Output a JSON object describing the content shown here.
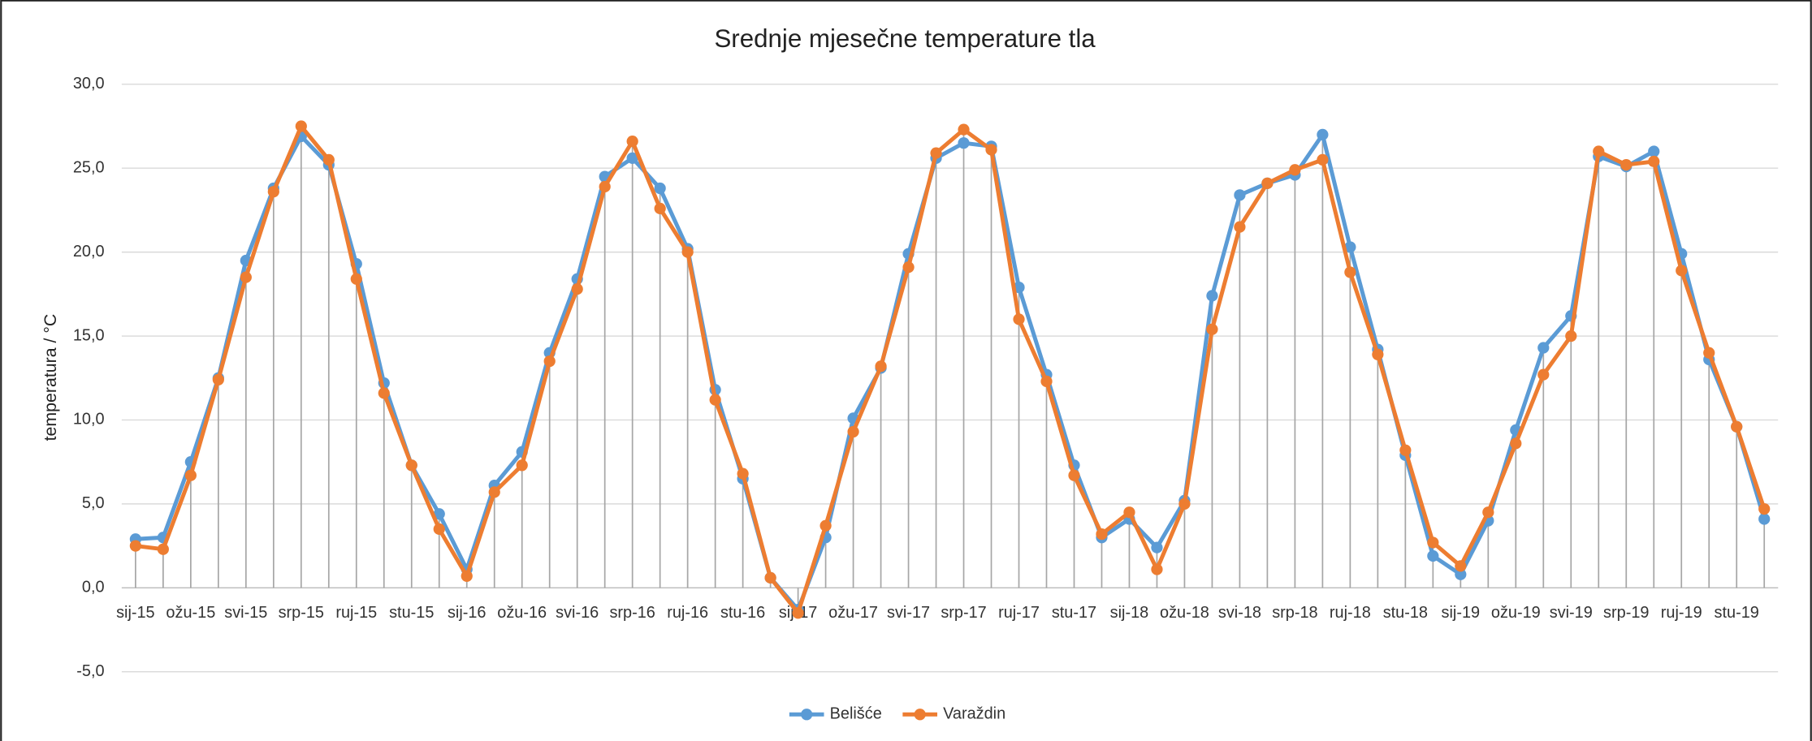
{
  "chart_data": {
    "type": "line",
    "title": "Srednje mjesečne temperature tla",
    "y_label": "temperatura / °C",
    "categories": [
      "sij-15",
      null,
      "ožu-15",
      null,
      "svi-15",
      null,
      "srp-15",
      null,
      "ruj-15",
      null,
      "stu-15",
      null,
      "sij-16",
      null,
      "ožu-16",
      null,
      "svi-16",
      null,
      "srp-16",
      null,
      "ruj-16",
      null,
      "stu-16",
      null,
      "sij-17",
      null,
      "ožu-17",
      null,
      "svi-17",
      null,
      "srp-17",
      null,
      "ruj-17",
      null,
      "stu-17",
      null,
      "sij-18",
      null,
      "ožu-18",
      null,
      "svi-18",
      null,
      "srp-18",
      null,
      "ruj-18",
      null,
      "stu-18",
      null,
      "sij-19",
      null,
      "ožu-19",
      null,
      "svi-19",
      null,
      "srp-19",
      null,
      "ruj-19",
      null,
      "stu-19",
      null
    ],
    "series": [
      {
        "name": "Belišće",
        "color": "#5b9bd5",
        "values": [
          2.9,
          3.0,
          7.5,
          12.5,
          19.5,
          23.8,
          26.9,
          25.2,
          19.3,
          12.2,
          7.3,
          4.4,
          1.1,
          6.1,
          8.1,
          14.0,
          18.4,
          24.5,
          25.6,
          23.8,
          20.2,
          11.8,
          6.5,
          0.6,
          -1.3,
          3.0,
          10.1,
          13.1,
          19.9,
          25.6,
          26.5,
          26.3,
          17.9,
          12.7,
          7.3,
          3.0,
          4.1,
          2.4,
          5.2,
          17.4,
          23.4,
          24.1,
          24.6,
          27.0,
          20.3,
          14.2,
          7.9,
          1.9,
          0.8,
          4.0,
          9.4,
          14.3,
          16.2,
          25.7,
          25.1,
          26.0,
          19.9,
          13.6,
          9.6,
          4.1
        ]
      },
      {
        "name": "Varaždin",
        "color": "#ed7d31",
        "values": [
          2.5,
          2.3,
          6.7,
          12.4,
          18.5,
          23.6,
          27.5,
          25.5,
          18.4,
          11.6,
          7.3,
          3.5,
          0.7,
          5.7,
          7.3,
          13.5,
          17.8,
          23.9,
          26.6,
          22.6,
          20.0,
          11.2,
          6.8,
          0.6,
          -1.5,
          3.7,
          9.3,
          13.2,
          19.1,
          25.9,
          27.3,
          26.1,
          16.0,
          12.3,
          6.7,
          3.2,
          4.5,
          1.1,
          5.0,
          15.4,
          21.5,
          24.1,
          24.9,
          25.5,
          18.8,
          13.9,
          8.2,
          2.7,
          1.3,
          4.5,
          8.6,
          12.7,
          15.0,
          26.0,
          25.2,
          25.4,
          18.9,
          14.0,
          9.6,
          4.7
        ]
      }
    ],
    "ylim": [
      -5,
      30
    ],
    "yticks": [
      {
        "value": -5,
        "label": "-5,0"
      },
      {
        "value": 0,
        "label": "0,0"
      },
      {
        "value": 5,
        "label": "5,0"
      },
      {
        "value": 10,
        "label": "10,0"
      },
      {
        "value": 15,
        "label": "15,0"
      },
      {
        "value": 20,
        "label": "20,0"
      },
      {
        "value": 25,
        "label": "25,0"
      },
      {
        "value": 30,
        "label": "30,0"
      }
    ],
    "grid": true,
    "drop_lines": true,
    "legend": "bottom"
  }
}
